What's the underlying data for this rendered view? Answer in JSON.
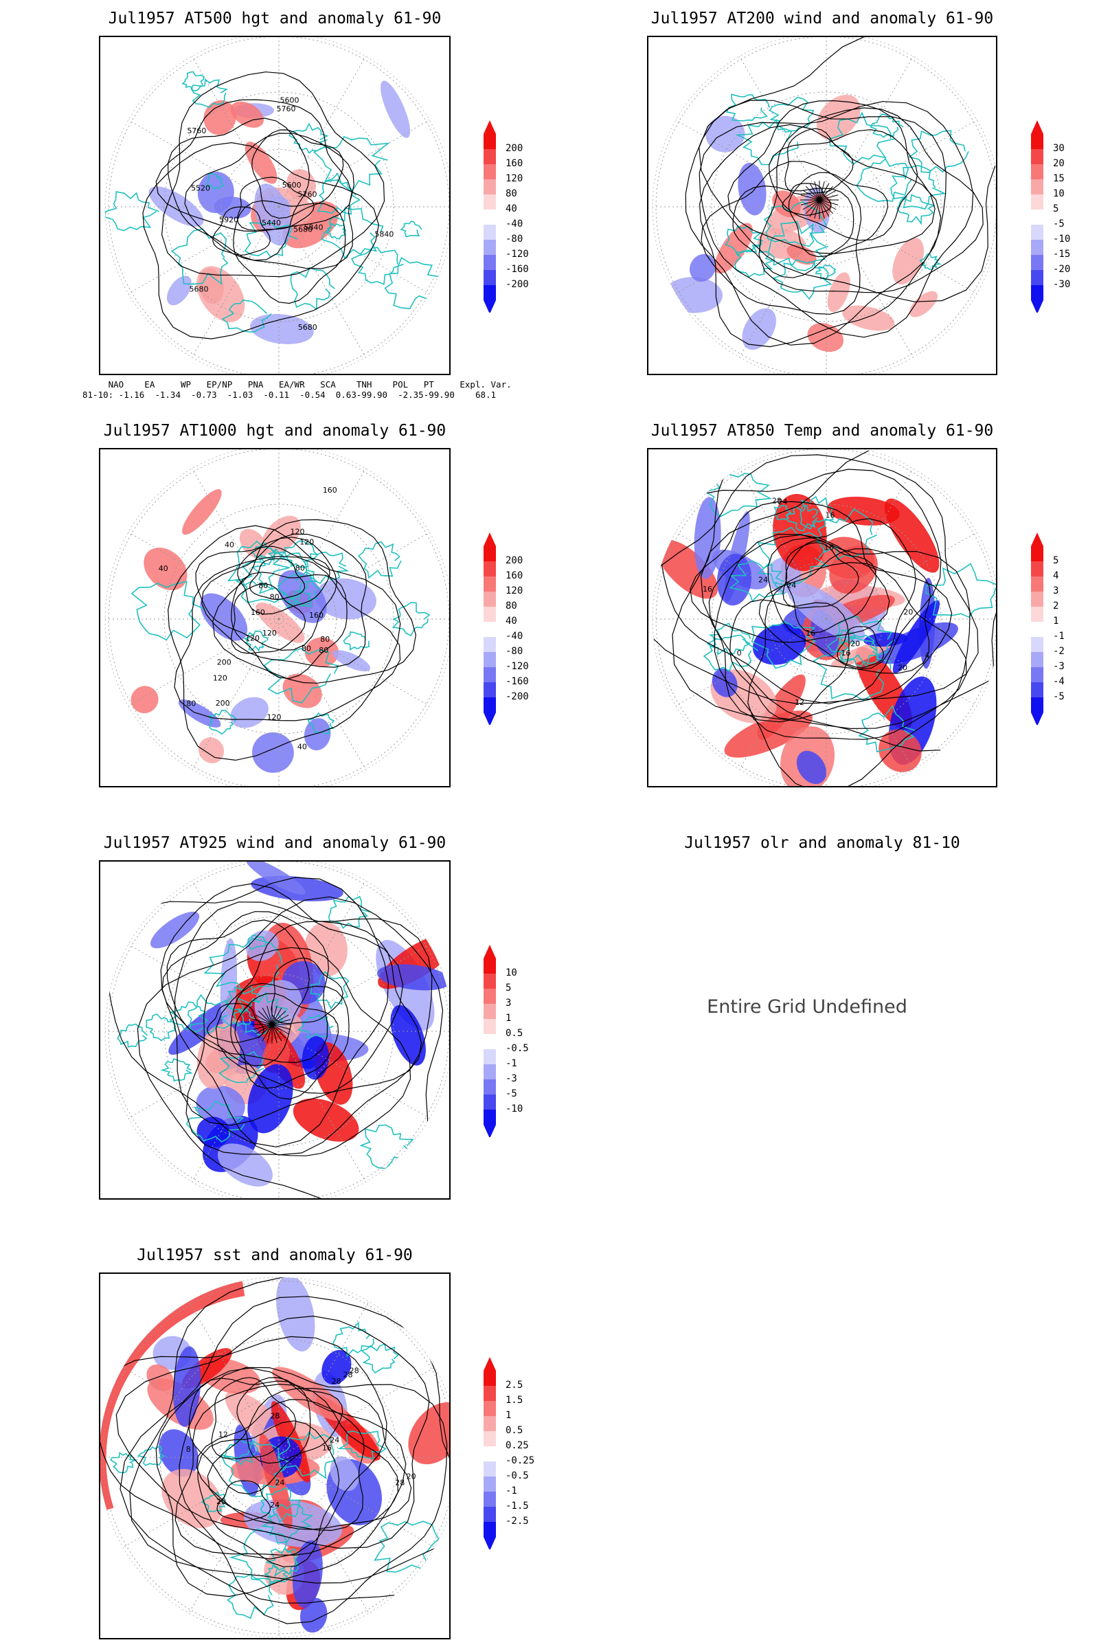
{
  "panels": [
    {
      "title": "Jul1957 AT500 hgt and anomaly 61-90",
      "colorbar": [
        "200",
        "160",
        "120",
        "80",
        "40",
        "-40",
        "-80",
        "-120",
        "-160",
        "-200"
      ],
      "contour_labels": [
        "5760",
        "5680",
        "5760",
        "5600",
        "5440",
        "5520",
        "5680",
        "5840",
        "5920",
        "5600",
        "5760",
        "5840",
        "5680"
      ]
    },
    {
      "title": "Jul1957 AT200 wind and anomaly 61-90",
      "colorbar": [
        "30",
        "20",
        "15",
        "10",
        "5",
        "-5",
        "-10",
        "-15",
        "-20",
        "-30"
      ]
    },
    {
      "title": "Jul1957 AT1000 hgt and anomaly 61-90",
      "colorbar": [
        "200",
        "160",
        "120",
        "80",
        "40",
        "-40",
        "-80",
        "-120",
        "-160",
        "-200"
      ],
      "contour_labels": [
        "80",
        "80",
        "120",
        "200",
        "160",
        "120",
        "160",
        "80",
        "40",
        "80",
        "40",
        "120",
        "80",
        "200",
        "160",
        "120",
        "40",
        "80",
        "120",
        "120",
        "80"
      ]
    },
    {
      "title": "Jul1957 AT850 Temp and anomaly 61-90",
      "colorbar": [
        "5",
        "4",
        "3",
        "2",
        "1",
        "-1",
        "-2",
        "-3",
        "-4",
        "-5"
      ],
      "contour_labels": [
        "16",
        "16",
        "20",
        "24",
        "4",
        "0",
        "28",
        "24",
        "20",
        "16",
        "16",
        "12",
        "20",
        "24",
        "16"
      ]
    },
    {
      "title": "Jul1957 AT925 wind and anomaly 61-90",
      "colorbar": [
        "10",
        "5",
        "3",
        "1",
        "0.5",
        "-0.5",
        "-1",
        "-3",
        "-5",
        "-10"
      ]
    },
    {
      "title": "Jul1957 olr and anomaly 81-10",
      "message": "Entire Grid Undefined"
    },
    {
      "title": "Jul1957 sst and anomaly 61-90",
      "colorbar": [
        "2.5",
        "1.5",
        "1",
        "0.5",
        "0.25",
        "-0.25",
        "-0.5",
        "-1",
        "-1.5",
        "-2.5"
      ],
      "contour_labels": [
        "28",
        "24",
        "20",
        "16",
        "12",
        "8",
        "28",
        "20",
        "24",
        "28",
        "28",
        "28",
        "24"
      ]
    }
  ],
  "teleconnections": {
    "header": "     NAO    EA     WP   EP/NP   PNA   EA/WR   SCA    TNH    POL   PT     Expl. Var.",
    "row": "81-10: -1.16  -1.34  -0.73  -1.03  -0.11  -0.54  0.63-99.90  -2.35-99.90    68.1"
  },
  "colors": {
    "positive": [
      "#f01010",
      "#f44848",
      "#f87878",
      "#f8a8a8",
      "#fcd8d8"
    ],
    "negative": [
      "#d8d8fc",
      "#a8a8f8",
      "#7878f4",
      "#4848f0",
      "#1010f0"
    ],
    "coast": "#20c0c0",
    "contour": "#000000"
  }
}
